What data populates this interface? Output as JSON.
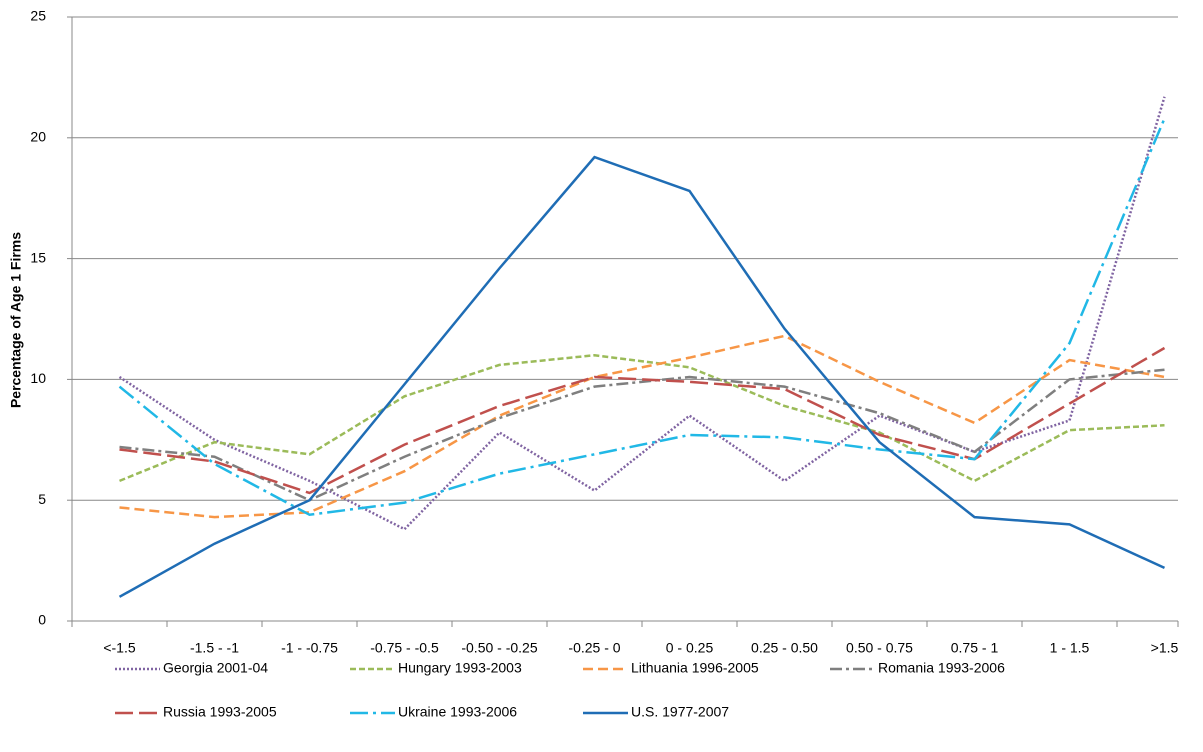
{
  "chart_data": {
    "type": "line",
    "y_label": "Percentage of Age 1 Firms",
    "categories": [
      "<-1.5",
      "-1.5 - -1",
      "-1 - -0.75",
      "-0.75 - -0.5",
      "-0.50 - -0.25",
      "-0.25 - 0",
      "0 - 0.25",
      "0.25 - 0.50",
      "0.50 - 0.75",
      "0.75 - 1",
      "1 - 1.5",
      ">1.5"
    ],
    "ylim": [
      0,
      25
    ],
    "yticks": [
      0,
      5,
      10,
      15,
      20,
      25
    ],
    "grid": true,
    "series": [
      {
        "name": "Georgia 2001-04",
        "color": "#8064a2",
        "dash": "dotted",
        "values": [
          10.1,
          7.5,
          5.8,
          3.8,
          7.8,
          5.4,
          8.5,
          5.8,
          8.5,
          7.0,
          8.3,
          21.7
        ]
      },
      {
        "name": "Hungary 1993-2003",
        "color": "#9bbb59",
        "dash": "short",
        "values": [
          5.8,
          7.4,
          6.9,
          9.3,
          10.6,
          11.0,
          10.5,
          8.9,
          7.8,
          5.8,
          7.9,
          8.1
        ]
      },
      {
        "name": "Lithuania 1996-2005",
        "color": "#f79646",
        "dash": "medium",
        "values": [
          4.7,
          4.3,
          4.5,
          6.2,
          8.5,
          10.1,
          10.9,
          11.8,
          9.9,
          8.2,
          10.8,
          10.1
        ]
      },
      {
        "name": "Romania 1993-2006",
        "color": "#7f7f7f",
        "dash": "dashdot",
        "values": [
          7.2,
          6.8,
          5.0,
          6.8,
          8.4,
          9.7,
          10.1,
          9.7,
          8.6,
          7.0,
          10.0,
          10.4
        ]
      },
      {
        "name": "Russia 1993-2005",
        "color": "#c0504d",
        "dash": "long",
        "values": [
          7.1,
          6.6,
          5.3,
          7.3,
          8.9,
          10.1,
          9.9,
          9.6,
          7.7,
          6.7,
          9.0,
          11.3
        ]
      },
      {
        "name": "Ukraine 1993-2006",
        "color": "#21b8e6",
        "dash": "longdashdot",
        "values": [
          9.7,
          6.5,
          4.4,
          4.9,
          6.1,
          6.9,
          7.7,
          7.6,
          7.1,
          6.7,
          11.5,
          20.8
        ]
      },
      {
        "name": "U.S. 1977-2007",
        "color": "#1f6db5",
        "dash": "solid",
        "values": [
          1.0,
          3.2,
          5.0,
          9.8,
          14.6,
          19.2,
          17.8,
          12.1,
          7.4,
          4.3,
          4.0,
          2.2
        ]
      }
    ]
  }
}
